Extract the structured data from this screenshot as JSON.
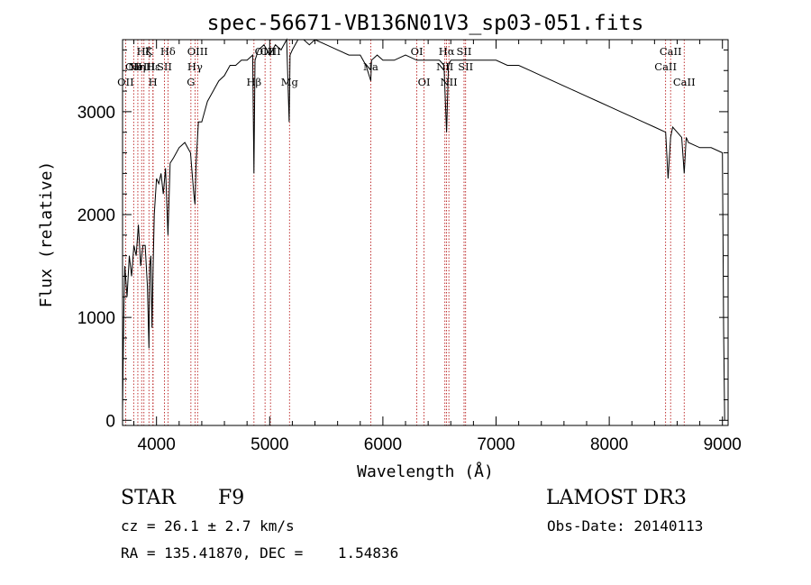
{
  "chart_data": {
    "type": "line",
    "title": "spec-56671-VB136N01V3_sp03-051.fits",
    "xlabel": "Wavelength (Å)",
    "ylabel": "Flux (relative)",
    "xlim": [
      3700,
      9050
    ],
    "ylim": [
      -50,
      3700
    ],
    "x_ticks": [
      4000,
      5000,
      6000,
      7000,
      8000,
      9000
    ],
    "y_ticks": [
      0,
      1000,
      2000,
      3000
    ],
    "x_minor_step": 200,
    "y_minor_step": 200,
    "grid": false,
    "series": [
      {
        "name": "spectrum",
        "x": [
          3700,
          3710,
          3720,
          3740,
          3760,
          3780,
          3800,
          3820,
          3840,
          3860,
          3880,
          3900,
          3920,
          3933,
          3940,
          3950,
          3960,
          3968,
          3980,
          4000,
          4020,
          4040,
          4060,
          4080,
          4101,
          4120,
          4150,
          4200,
          4250,
          4300,
          4330,
          4340,
          4350,
          4370,
          4400,
          4450,
          4500,
          4550,
          4600,
          4650,
          4700,
          4750,
          4800,
          4850,
          4861,
          4870,
          4900,
          4950,
          5000,
          5050,
          5100,
          5150,
          5172,
          5180,
          5200,
          5250,
          5300,
          5350,
          5400,
          5500,
          5600,
          5700,
          5800,
          5850,
          5893,
          5900,
          5950,
          6000,
          6100,
          6200,
          6300,
          6400,
          6500,
          6540,
          6563,
          6580,
          6600,
          6700,
          6800,
          6900,
          7000,
          7100,
          7200,
          7300,
          7400,
          7500,
          7600,
          7700,
          7800,
          7900,
          8000,
          8100,
          8200,
          8300,
          8400,
          8498,
          8520,
          8542,
          8560,
          8600,
          8640,
          8662,
          8680,
          8700,
          8800,
          8900,
          9000,
          9010,
          9020
        ],
        "values": [
          100,
          1000,
          1500,
          1200,
          1600,
          1400,
          1700,
          1600,
          1900,
          1500,
          1700,
          1700,
          1300,
          700,
          1500,
          1600,
          900,
          1400,
          2000,
          2350,
          2300,
          2400,
          2200,
          2450,
          1800,
          2500,
          2550,
          2650,
          2700,
          2600,
          2200,
          2100,
          2500,
          2900,
          2900,
          3100,
          3200,
          3300,
          3350,
          3450,
          3450,
          3500,
          3500,
          3550,
          2400,
          3500,
          3600,
          3650,
          3550,
          3650,
          3600,
          3700,
          2900,
          3550,
          3600,
          3700,
          3750,
          3650,
          3700,
          3650,
          3600,
          3550,
          3550,
          3450,
          3300,
          3500,
          3550,
          3500,
          3500,
          3550,
          3500,
          3500,
          3500,
          3450,
          2800,
          3450,
          3500,
          3500,
          3500,
          3500,
          3500,
          3450,
          3450,
          3400,
          3350,
          3300,
          3250,
          3200,
          3150,
          3100,
          3050,
          3000,
          2950,
          2900,
          2850,
          2800,
          2350,
          2750,
          2850,
          2800,
          2750,
          2400,
          2750,
          2700,
          2650,
          2650,
          2600,
          900,
          0
        ]
      }
    ],
    "lines": [
      {
        "wl": 3727,
        "row": 2,
        "label": "OII"
      },
      {
        "wl": 3798,
        "row": 1,
        "label": "OII"
      },
      {
        "wl": 3835,
        "row": 1,
        "label": "Hη"
      },
      {
        "wl": 3869,
        "row": 1,
        "label": "NeIII"
      },
      {
        "wl": 3889,
        "row": 0,
        "label": "Hζ"
      },
      {
        "wl": 3933,
        "row": 0,
        "label": "K"
      },
      {
        "wl": 3968,
        "row": 2,
        "label": "H"
      },
      {
        "wl": 3970,
        "row": 1,
        "label": "Hε"
      },
      {
        "wl": 4070,
        "row": 1,
        "label": "SII"
      },
      {
        "wl": 4101,
        "row": 0,
        "label": "Hδ"
      },
      {
        "wl": 4304,
        "row": 2,
        "label": "G"
      },
      {
        "wl": 4340,
        "row": 1,
        "label": "Hγ"
      },
      {
        "wl": 4363,
        "row": 0,
        "label": "OIII"
      },
      {
        "wl": 4861,
        "row": 2,
        "label": "Hβ"
      },
      {
        "wl": 4959,
        "row": 0,
        "label": "OIII"
      },
      {
        "wl": 5007,
        "row": 0,
        "label": "OIII"
      },
      {
        "wl": 5175,
        "row": 2,
        "label": "Mg"
      },
      {
        "wl": 5893,
        "row": 1,
        "label": "Na"
      },
      {
        "wl": 6300,
        "row": 0,
        "label": "OI"
      },
      {
        "wl": 6364,
        "row": 2,
        "label": "OI"
      },
      {
        "wl": 6548,
        "row": 1,
        "label": "NII"
      },
      {
        "wl": 6563,
        "row": 0,
        "label": "Hα"
      },
      {
        "wl": 6583,
        "row": 2,
        "label": "NII"
      },
      {
        "wl": 6717,
        "row": 0,
        "label": "SII"
      },
      {
        "wl": 6731,
        "row": 1,
        "label": "SII"
      },
      {
        "wl": 8498,
        "row": 1,
        "label": "CaII"
      },
      {
        "wl": 8542,
        "row": 0,
        "label": "CaII"
      },
      {
        "wl": 8662,
        "row": 2,
        "label": "CaII"
      }
    ]
  },
  "info": {
    "class_label": "STAR",
    "subclass": "F9",
    "survey": "LAMOST DR3",
    "cz": "cz = 26.1 ± 2.7 km/s",
    "obs_date": "Obs-Date: 20140113",
    "coords": "RA = 135.41870, DEC =    1.54836"
  },
  "colors": {
    "line_marker": "#b00000",
    "spectrum": "#000000"
  }
}
